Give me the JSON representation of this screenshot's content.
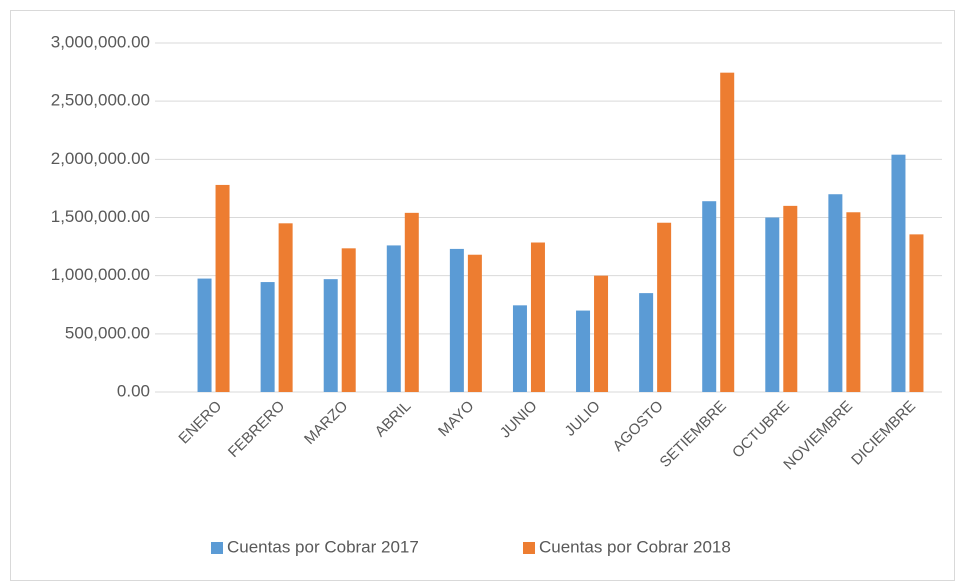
{
  "chart_data": {
    "type": "bar",
    "categories": [
      "ENERO",
      "FEBRERO",
      "MARZO",
      "ABRIL",
      "MAYO",
      "JUNIO",
      "JULIO",
      "AGOSTO",
      "SETIEMBRE",
      "OCTUBRE",
      "NOVIEMBRE",
      "DICIEMBRE"
    ],
    "series": [
      {
        "name": "Cuentas por Cobrar 2017",
        "color": "#5b9bd5",
        "values": [
          975000,
          945000,
          970000,
          1260000,
          1230000,
          745000,
          700000,
          850000,
          1640000,
          1500000,
          1700000,
          2040000
        ]
      },
      {
        "name": "Cuentas por Cobrar 2018",
        "color": "#ed7d31",
        "values": [
          1780000,
          1450000,
          1235000,
          1540000,
          1180000,
          1285000,
          1000000,
          1455000,
          2745000,
          1600000,
          1545000,
          1355000
        ]
      }
    ],
    "ylim": [
      0,
      3000000
    ],
    "yticks": [
      {
        "value": 0,
        "label": "0.00"
      },
      {
        "value": 500000,
        "label": "500,000.00"
      },
      {
        "value": 1000000,
        "label": "1,000,000.00"
      },
      {
        "value": 1500000,
        "label": "1,500,000.00"
      },
      {
        "value": 2000000,
        "label": "2,000,000.00"
      },
      {
        "value": 2500000,
        "label": "2,500,000.00"
      },
      {
        "value": 3000000,
        "label": "3,000,000.00"
      }
    ],
    "grid": true,
    "legend": "bottom"
  }
}
